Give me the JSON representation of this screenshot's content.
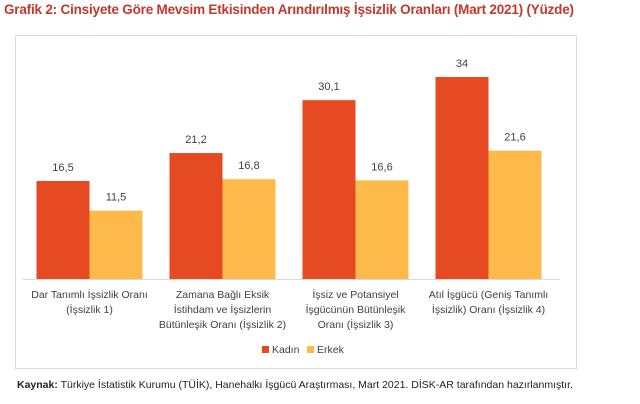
{
  "title": "Grafik 2: Cinsiyete Göre Mevsim Etkisinden Arındırılmış İşsizlik Oranları (Mart 2021) (Yüzde)",
  "source": {
    "label": "Kaynak:",
    "text": " Türkiye İstatistik Kurumu (TÜİK), Hanehalkı İşgücü Araştırması, Mart 2021. DİSK-AR tarafından hazırlanmıştır."
  },
  "chart_data": {
    "type": "bar",
    "title": "Grafik 2: Cinsiyete Göre Mevsim Etkisinden Arındırılmış İşsizlik Oranları (Mart 2021) (Yüzde)",
    "xlabel": "",
    "ylabel": "",
    "ylim": [
      0,
      34
    ],
    "grid": false,
    "legend": "bottom",
    "categories": [
      [
        "Dar Tanımlı İşsizlik Oranı",
        "(İşsizlik 1)"
      ],
      [
        "Zamana Bağlı Eksik",
        "İstihdam ve İşsizlerin",
        "Bütünleşik Oranı (İşsizlik 2)"
      ],
      [
        "İşsiz ve Potansiyel",
        "İşgücünün Bütünleşik",
        "Oranı (İşsizlik 3)"
      ],
      [
        "Atıl İşgücü (Geniş Tanımlı",
        "İşsizlik) Oranı (İşsizlik 4)"
      ]
    ],
    "series": [
      {
        "name": "Kadın",
        "color": "#e64a22",
        "values": [
          16.5,
          21.2,
          30.1,
          34
        ],
        "labels": [
          "16,5",
          "21,2",
          "30,1",
          "34"
        ]
      },
      {
        "name": "Erkek",
        "color": "#fdb94a",
        "values": [
          11.5,
          16.8,
          16.6,
          21.6
        ],
        "labels": [
          "11,5",
          "16,8",
          "16,6",
          "21,6"
        ]
      }
    ]
  }
}
